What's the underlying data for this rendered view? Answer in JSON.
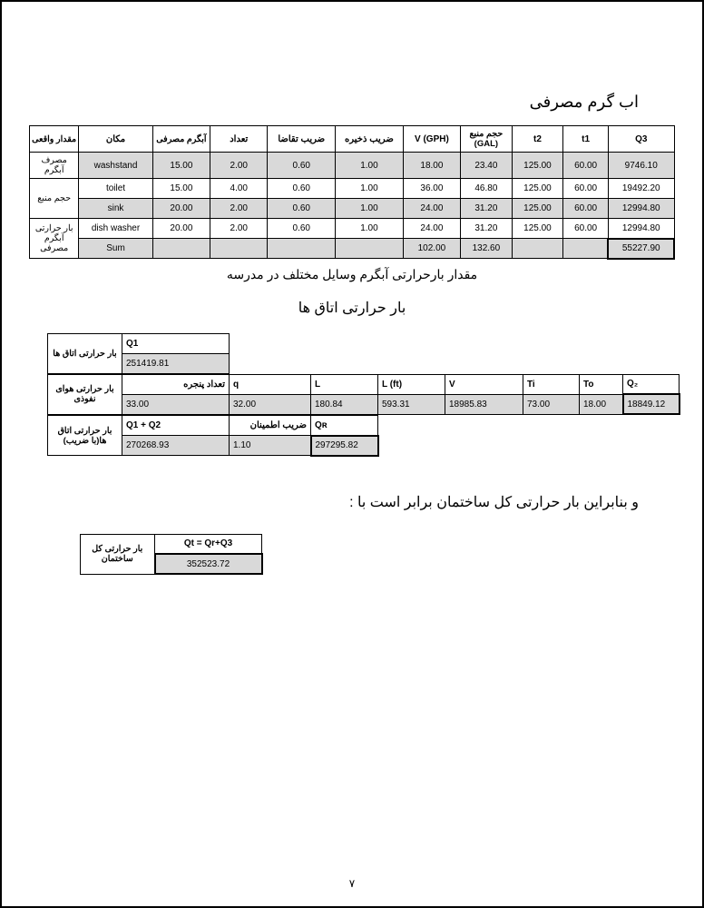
{
  "title_hotwater": "اب گرم مصرفی",
  "table1": {
    "headers": {
      "c0": "مقدار واقعی",
      "c1": "مکان",
      "c2": "آبگرم مصرفی",
      "c3": "تعداد",
      "c4": "ضریب تقاضا",
      "c5": "ضریب ذخیره",
      "c6": "V (GPH)",
      "c7": "حجم منبع (GAL)",
      "c8": "t2",
      "c9": "t1",
      "c10": "Q3"
    },
    "side": {
      "s0": "مصرف آبگرم",
      "s1": "حجم منبع",
      "s2": "بار حرارتی آبگرم مصرفی"
    },
    "rows": [
      {
        "place": "washstand",
        "hw": "15.00",
        "n": "2.00",
        "dem": "0.60",
        "stor": "1.00",
        "v": "18.00",
        "vol": "23.40",
        "t2": "125.00",
        "t1": "60.00",
        "q3": "9746.10",
        "grey": true
      },
      {
        "place": "toilet",
        "hw": "15.00",
        "n": "4.00",
        "dem": "0.60",
        "stor": "1.00",
        "v": "36.00",
        "vol": "46.80",
        "t2": "125.00",
        "t1": "60.00",
        "q3": "19492.20",
        "grey": false
      },
      {
        "place": "sink",
        "hw": "20.00",
        "n": "2.00",
        "dem": "0.60",
        "stor": "1.00",
        "v": "24.00",
        "vol": "31.20",
        "t2": "125.00",
        "t1": "60.00",
        "q3": "12994.80",
        "grey": true
      },
      {
        "place": "dish washer",
        "hw": "20.00",
        "n": "2.00",
        "dem": "0.60",
        "stor": "1.00",
        "v": "24.00",
        "vol": "31.20",
        "t2": "125.00",
        "t1": "60.00",
        "q3": "12994.80",
        "grey": false
      },
      {
        "place": "Sum",
        "hw": "",
        "n": "",
        "dem": "",
        "stor": "",
        "v": "102.00",
        "vol": "132.60",
        "t2": "",
        "t1": "",
        "q3": "55227.90",
        "grey": true
      }
    ]
  },
  "caption_table1": "مقدار بارحرارتی آبگرم وسایل مختلف در مدرسه",
  "title_rooms": "بار حرارتی اتاق ها",
  "block2": {
    "row1": {
      "label": "بار حرارتی اتاق ها",
      "h": "Q1",
      "val": "251419.81"
    },
    "row2": {
      "label": "بار حرارتی هوای نفوذی",
      "h_windows": "تعداد پنجره",
      "h_q": "q",
      "h_L": "L",
      "h_Lft": "L (ft)",
      "h_V": "V",
      "h_Ti": "Ti",
      "h_To": "To",
      "h_Q2": "Q₂",
      "windows": "33.00",
      "q": "32.00",
      "L": "180.84",
      "Lft": "593.31",
      "V": "18985.83",
      "Ti": "73.00",
      "To": "18.00",
      "Q2": "18849.12"
    },
    "row3": {
      "label": "بار حرارتی اتاق ها(با ضریب)",
      "h_sum": "Q1 + Q2",
      "h_coef": "ضریب اطمینان",
      "h_QR": "Qʀ",
      "sum": "270268.93",
      "coef": "1.10",
      "QR": "297295.82"
    }
  },
  "sentence": "و بنابراین بار حرارتی کل ساختمان برابر است با :",
  "final": {
    "label": "بار حرارتی کل ساختمان",
    "h": "Qt = Qr+Q3",
    "val": "352523.72"
  },
  "pagenum": "٧"
}
